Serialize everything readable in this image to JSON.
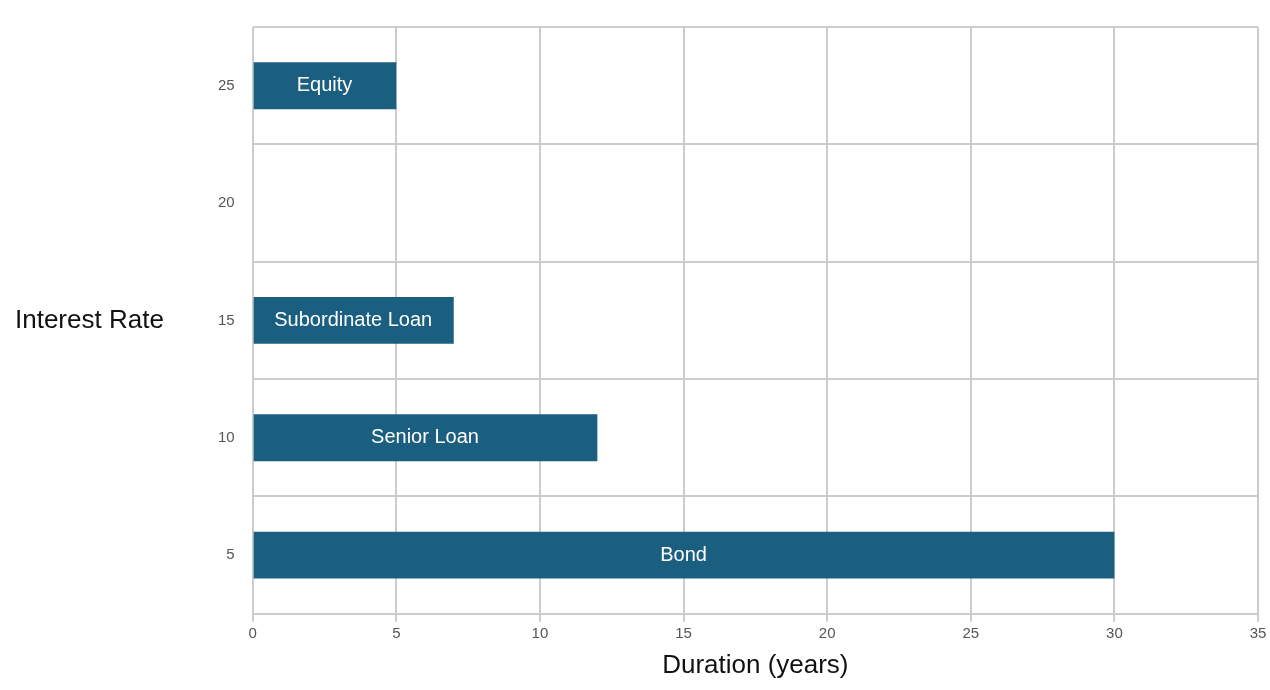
{
  "chart_data": {
    "type": "bar",
    "orientation": "horizontal",
    "xlabel": "Duration (years)",
    "ylabel": "Interest Rate",
    "categories": [
      "25",
      "20",
      "15",
      "10",
      "5"
    ],
    "values": [
      5,
      null,
      7,
      12,
      30
    ],
    "color": "#1a5e80",
    "xlim": [
      0,
      35
    ],
    "xticks": [
      0,
      5,
      10,
      15,
      20,
      25,
      30,
      35
    ],
    "grid": true,
    "annotations": [
      "Equity",
      "Subordinate Loan",
      "Senior Loan",
      "Bond"
    ]
  }
}
